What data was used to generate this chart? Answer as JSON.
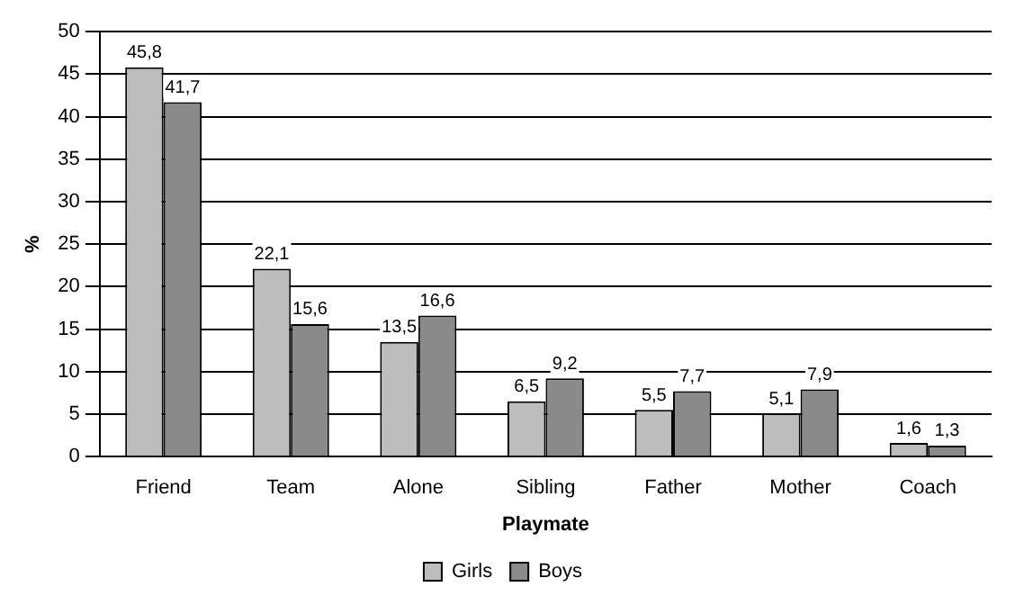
{
  "chart_data": {
    "type": "bar",
    "xlabel": "Playmate",
    "ylabel": "%",
    "categories": [
      "Friend",
      "Team",
      "Alone",
      "Sibling",
      "Father",
      "Mother",
      "Coach"
    ],
    "series": [
      {
        "name": "Girls",
        "color": "#bdbdbd",
        "values": [
          45.8,
          22.1,
          13.5,
          6.5,
          5.5,
          5.1,
          1.6
        ],
        "value_labels": [
          "45,8",
          "22,1",
          "13,5",
          "6,5",
          "5,5",
          "5,1",
          "1,6"
        ]
      },
      {
        "name": "Boys",
        "color": "#8a8a8a",
        "values": [
          41.7,
          15.6,
          16.6,
          9.2,
          7.7,
          7.9,
          1.3
        ],
        "value_labels": [
          "41,7",
          "15,6",
          "16,6",
          "9,2",
          "7,7",
          "7,9",
          "1,3"
        ]
      }
    ],
    "ylim": [
      0,
      50
    ],
    "yticks": [
      0,
      5,
      10,
      15,
      20,
      25,
      30,
      35,
      40,
      45,
      50
    ],
    "grid": "y",
    "legend": "bottom"
  }
}
